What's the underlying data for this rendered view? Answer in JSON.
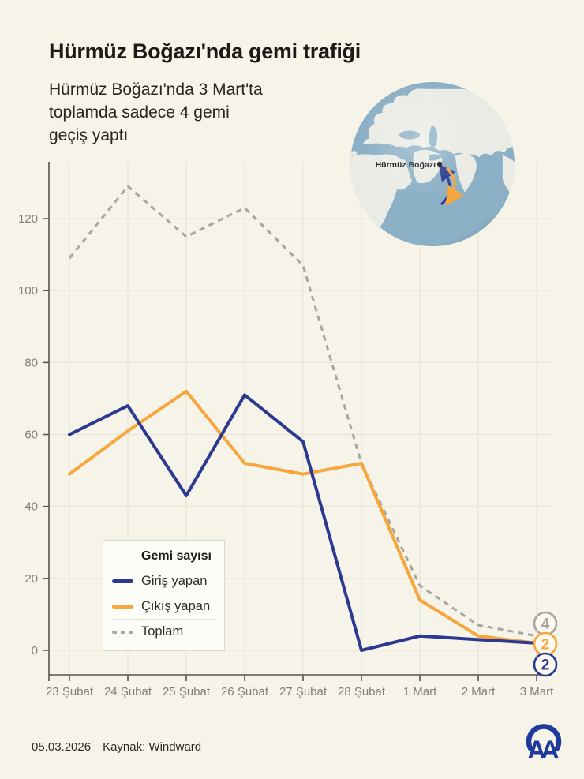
{
  "header": {
    "title": "Hürmüz Boğazı'nda gemi trafiği",
    "subtitle": "Hürmüz Boğazı'nda 3 Mart'ta toplamda sadece 4 gemi geçiş yaptı",
    "subtitle_lines": [
      "Hürmüz Boğazı'nda 3 Mart'ta",
      "toplamda sadece 4 gemi",
      "geçiş yaptı"
    ]
  },
  "globe": {
    "label": "Hürmüz Boğazı"
  },
  "chart_data": {
    "type": "line",
    "categories": [
      "23 Şubat",
      "24 Şubat",
      "25 Şubat",
      "26 Şubat",
      "27 Şubat",
      "28 Şubat",
      "1 Mart",
      "2 Mart",
      "3 Mart"
    ],
    "series": [
      {
        "name": "Giriş yapan",
        "color": "#2b3990",
        "dash": false,
        "values": [
          60,
          68,
          43,
          71,
          58,
          0,
          4,
          3,
          2
        ]
      },
      {
        "name": "Çıkış yapan",
        "color": "#f6a63c",
        "dash": false,
        "values": [
          49,
          61,
          72,
          52,
          49,
          52,
          14,
          4,
          2
        ]
      },
      {
        "name": "Toplam",
        "color": "#a7a6a0",
        "dash": true,
        "values": [
          109,
          129,
          115,
          123,
          107,
          52,
          18,
          7,
          4
        ]
      }
    ],
    "legend_title": "Gemi sayısı",
    "legend_position": "bottom-left",
    "yticks": [
      0,
      20,
      40,
      60,
      80,
      100,
      120
    ],
    "ylim": [
      0,
      135
    ],
    "grid": true,
    "end_labels": [
      4,
      2,
      2
    ]
  },
  "footer": {
    "date": "05.03.2026",
    "source": "Kaynak: Windward",
    "logo": "AA"
  },
  "theme": {
    "background": "#f6f4e8",
    "logo_blue": "#1d3a9c",
    "axis_gray": "#55544e",
    "label_gray": "#807f77"
  }
}
